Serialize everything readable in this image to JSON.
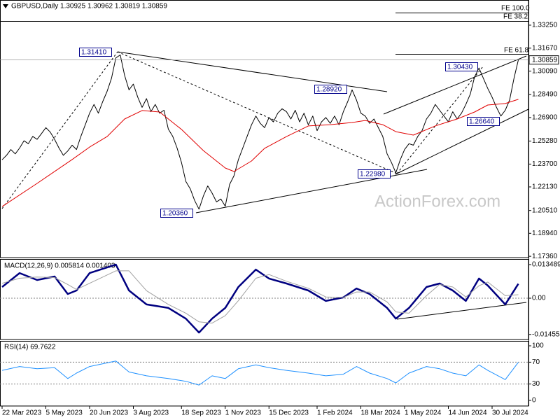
{
  "chart_data": [
    {
      "type": "line",
      "title": "GBPUSD,Daily  1.30925 1.30962 1.30819 1.30859",
      "watermark": "ActionForex.com",
      "annotations": [
        "1.31410",
        "1.28920",
        "1.20360",
        "1.22980",
        "1.30430",
        "1.26640"
      ],
      "fib_labels": [
        "FE 100.0",
        "FE 38.2",
        "FE 61.8"
      ],
      "categories": [
        "22 Mar 2023",
        null,
        null,
        null,
        null,
        null,
        null,
        null,
        null,
        null,
        "5 May 2023",
        null,
        null,
        null,
        null,
        null,
        null,
        null,
        null,
        null,
        "20 Jun 2023",
        null,
        null,
        null,
        null,
        null,
        null,
        null,
        null,
        null,
        "3 Aug 2023",
        null,
        null,
        null,
        null,
        null,
        null,
        null,
        null,
        null,
        null,
        "18 Sep 2023",
        null,
        null,
        null,
        null,
        null,
        null,
        null,
        null,
        null,
        "1 Nov 2023",
        null,
        null,
        null,
        null,
        null,
        null,
        null,
        null,
        null,
        "15 Dec 2023",
        null,
        null,
        null,
        null,
        null,
        null,
        null,
        null,
        null,
        null,
        "1 Feb 2024",
        null,
        null,
        null,
        null,
        null,
        null,
        null,
        null,
        null,
        "18 Mar 2024",
        null,
        null,
        null,
        null,
        null,
        null,
        null,
        null,
        null,
        "1 May 2024",
        null,
        null,
        null,
        null,
        null,
        null,
        null,
        null,
        null,
        "14 Jun 2024",
        null,
        null,
        null,
        null,
        null,
        null,
        null,
        null,
        null,
        "30 Jul 2024",
        null,
        null,
        null,
        null,
        null,
        null
      ],
      "series": [
        {
          "color": "#000000",
          "width": 1,
          "values": [
            1.24,
            1.243,
            1.247,
            1.244,
            1.248,
            1.253,
            1.251,
            1.256,
            1.254,
            1.258,
            1.262,
            1.259,
            1.254,
            1.248,
            1.243,
            1.246,
            1.25,
            1.247,
            1.256,
            1.264,
            1.272,
            1.278,
            1.272,
            1.28,
            1.287,
            1.296,
            1.31,
            1.312,
            1.298,
            1.288,
            1.292,
            1.283,
            1.276,
            1.282,
            1.273,
            1.278,
            1.272,
            1.274,
            1.261,
            1.256,
            1.248,
            1.238,
            1.225,
            1.22,
            1.212,
            1.206,
            1.215,
            1.222,
            1.217,
            1.211,
            1.213,
            1.208,
            1.223,
            1.229,
            1.24,
            1.248,
            1.256,
            1.264,
            1.27,
            1.265,
            1.262,
            1.269,
            1.266,
            1.272,
            1.275,
            1.273,
            1.268,
            1.274,
            1.266,
            1.272,
            1.264,
            1.27,
            1.26,
            1.266,
            1.269,
            1.265,
            1.27,
            1.264,
            1.273,
            1.28,
            1.288,
            1.281,
            1.272,
            1.27,
            1.265,
            1.268,
            1.262,
            1.256,
            1.244,
            1.238,
            1.231,
            1.24,
            1.247,
            1.251,
            1.25,
            1.256,
            1.26,
            1.268,
            1.272,
            1.278,
            1.274,
            1.27,
            1.266,
            1.273,
            1.268,
            1.272,
            1.278,
            1.285,
            1.297,
            1.303,
            1.296,
            1.289,
            1.283,
            1.276,
            1.27,
            1.274,
            1.281,
            1.296,
            1.3086
          ]
        },
        {
          "color": "#e00000",
          "width": 1,
          "x": [
            0,
            8,
            16,
            20,
            24,
            28,
            32,
            36,
            41,
            46,
            51,
            53,
            57,
            60,
            65,
            70,
            75,
            80,
            83,
            87,
            90,
            94,
            99,
            104,
            108,
            111,
            115,
            118
          ],
          "values": [
            1.2078,
            1.2237,
            1.2401,
            1.2487,
            1.2559,
            1.268,
            1.2738,
            1.2728,
            1.2608,
            1.2463,
            1.2343,
            1.2319,
            1.2391,
            1.2478,
            1.2559,
            1.2632,
            1.2641,
            1.2656,
            1.267,
            1.2641,
            1.2593,
            1.2569,
            1.2632,
            1.268,
            1.2728,
            1.2776,
            1.2786,
            1.2815
          ]
        }
      ],
      "ylim": [
        1.1727,
        1.3498
      ],
      "yticks": [
        {
          "value": 1.3325,
          "label": "1.33250"
        },
        {
          "value": 1.3167,
          "label": "1.31670"
        },
        {
          "value": 1.3009,
          "label": "1.30090"
        },
        {
          "value": 1.2849,
          "label": "1.28490"
        },
        {
          "value": 1.269,
          "label": "1.26900"
        },
        {
          "value": 1.2528,
          "label": "1.25280"
        },
        {
          "value": 1.237,
          "label": "1.23700"
        },
        {
          "value": 1.2213,
          "label": "1.22130"
        },
        {
          "value": 1.2051,
          "label": "1.20510"
        },
        {
          "value": 1.1894,
          "label": "1.18940"
        },
        {
          "value": 1.1736,
          "label": "1.17360"
        }
      ],
      "last": {
        "value": 1.30859,
        "label": "1.30859"
      }
    },
    {
      "type": "line",
      "title": "MACD(12,26,9) 0.005814 0.001403",
      "series": [
        {
          "color": "#000080",
          "width": 2.5,
          "x": [
            0,
            4,
            8,
            12,
            15,
            17,
            20,
            26,
            29,
            33,
            38,
            42,
            45,
            48,
            51,
            54,
            58,
            61,
            65,
            70,
            74,
            78,
            81,
            84,
            88,
            90,
            93,
            97,
            100,
            103,
            106,
            109,
            111,
            115,
            118
          ],
          "values": [
            0.0045,
            0.0101,
            0.0073,
            0.0087,
            0.0017,
            0.0031,
            0.0101,
            0.0135,
            0.0031,
            -0.0025,
            -0.0039,
            -0.0082,
            -0.0138,
            -0.0082,
            -0.0039,
            0.0045,
            0.0115,
            0.0079,
            0.0059,
            0.0031,
            -0.0011,
            0.0003,
            0.0039,
            0.0017,
            -0.0039,
            -0.0082,
            -0.0039,
            0.0045,
            0.0059,
            0.0031,
            -0.0011,
            0.0079,
            0.0051,
            -0.0025,
            0.0058
          ]
        },
        {
          "color": "#a0a0a0",
          "width": 1,
          "x": [
            0,
            4,
            8,
            12,
            15,
            17,
            20,
            26,
            29,
            33,
            38,
            42,
            45,
            48,
            51,
            54,
            58,
            61,
            65,
            70,
            74,
            78,
            81,
            84,
            88,
            90,
            93,
            97,
            100,
            103,
            106,
            109,
            111,
            115,
            118
          ],
          "values": [
            0.006,
            0.008,
            0.0085,
            0.0083,
            0.0055,
            0.0035,
            0.006,
            0.011,
            0.011,
            0.003,
            -0.0025,
            -0.006,
            -0.0095,
            -0.01,
            -0.007,
            -0.001,
            0.008,
            0.0095,
            0.0068,
            0.004,
            0.0005,
            0.0003,
            0.0025,
            0.0025,
            -0.0015,
            -0.0055,
            -0.006,
            0.001,
            0.0055,
            0.0045,
            0.0005,
            0.005,
            0.0065,
            0.001,
            0.0014
          ]
        }
      ],
      "ylim": [
        -0.01658,
        0.01574
      ],
      "yticks": [
        0.013489,
        {
          "value": 0,
          "label": "0.00"
        },
        -0.014554
      ],
      "levels": [
        0
      ]
    },
    {
      "type": "line",
      "title": "RSI(14) 69.7622",
      "series": [
        {
          "color": "#1e90ff",
          "width": 1,
          "x": [
            0,
            4,
            8,
            12,
            15,
            17,
            20,
            26,
            29,
            33,
            38,
            42,
            45,
            48,
            51,
            54,
            58,
            61,
            65,
            70,
            74,
            78,
            81,
            84,
            88,
            90,
            93,
            97,
            100,
            103,
            106,
            109,
            111,
            115,
            118
          ],
          "values": [
            55,
            62,
            58,
            60,
            40,
            50,
            62,
            72,
            52,
            45,
            40,
            35,
            28,
            45,
            40,
            58,
            65,
            60,
            55,
            50,
            45,
            48,
            62,
            50,
            40,
            32,
            50,
            62,
            58,
            50,
            45,
            65,
            55,
            38,
            69.8
          ]
        }
      ],
      "ylim": [
        -10.3,
        109
      ],
      "yticks": [
        100,
        70,
        30,
        0
      ],
      "levels": [
        70,
        30
      ]
    }
  ]
}
